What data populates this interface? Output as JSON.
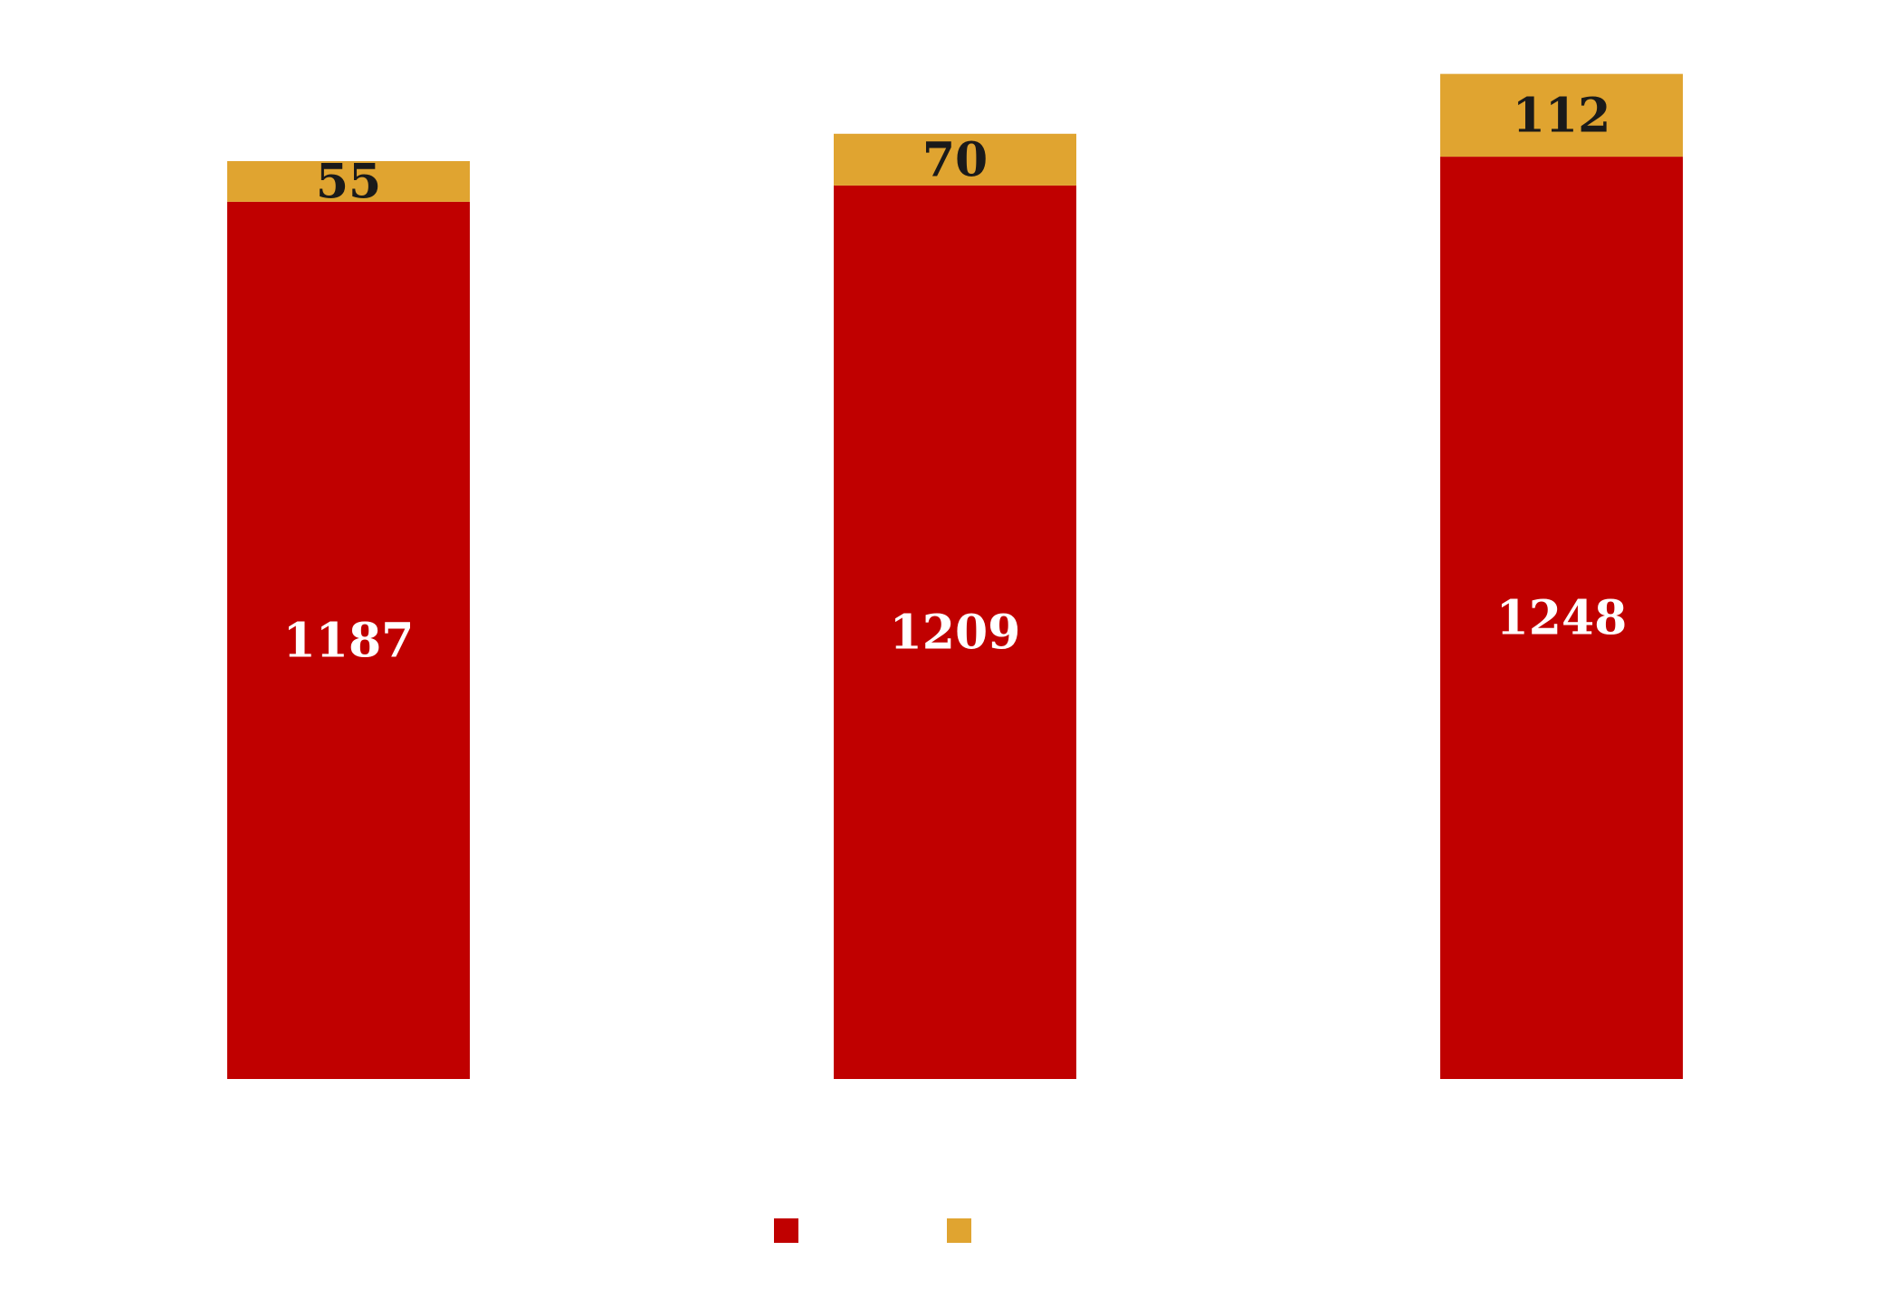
{
  "chart_data": {
    "type": "bar",
    "stacked": true,
    "categories": [
      "",
      "",
      ""
    ],
    "series": [
      {
        "values": [
          1187,
          1209,
          1248
        ],
        "color": "#c00000",
        "label_color": "#ffffff"
      },
      {
        "values": [
          55,
          70,
          112
        ],
        "color": "#e0a430",
        "label_color": "#1a1a1a"
      }
    ],
    "title": "",
    "xlabel": "",
    "ylabel": "",
    "ylim": [
      0,
      1460
    ],
    "grid": false,
    "legend": "bottom-center"
  }
}
